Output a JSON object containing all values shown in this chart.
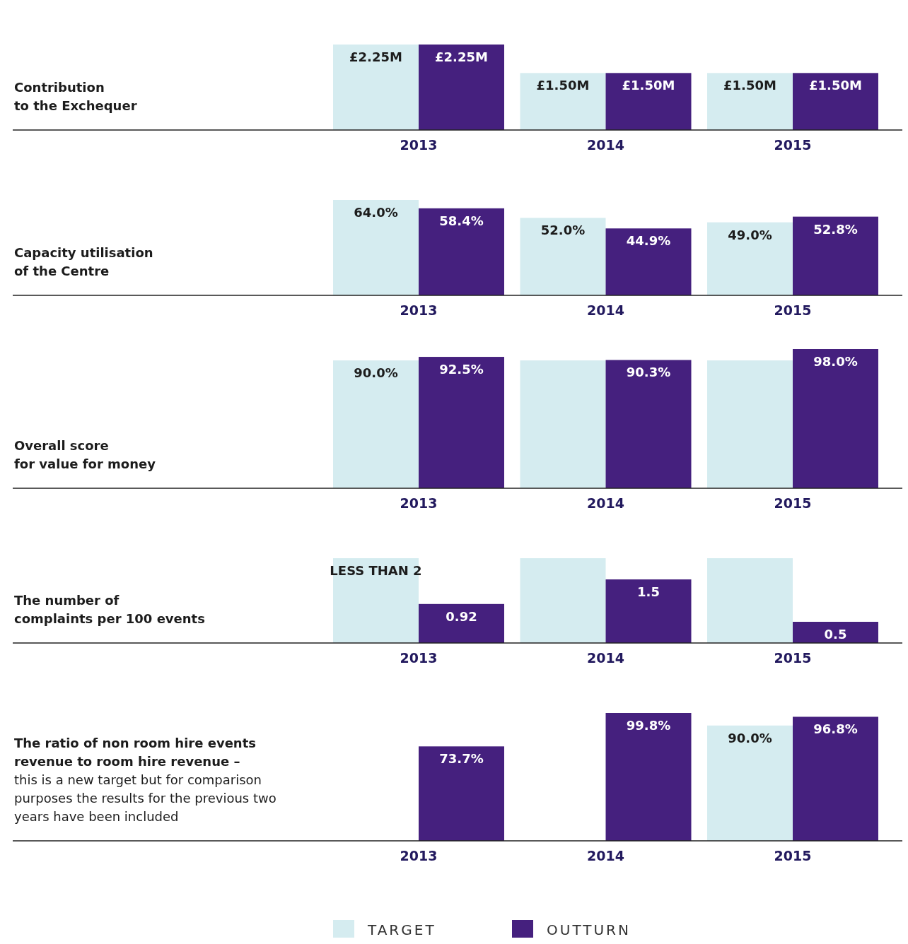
{
  "chart_data": [
    {
      "type": "bar",
      "ylabel": "Contribution\nto the Exchequer",
      "categories": [
        "2013",
        "2014",
        "2015"
      ],
      "series": [
        {
          "color": "#d5ecf0",
          "values": [
            2.25,
            1.5,
            1.5
          ],
          "value_labels": [
            "£2.25M",
            "£1.50M",
            "£1.50M"
          ]
        },
        {
          "color": "#45207e",
          "values": [
            2.25,
            1.5,
            1.5
          ],
          "value_labels": [
            "£2.25M",
            "£1.50M",
            "£1.50M"
          ]
        }
      ]
    },
    {
      "type": "bar",
      "ylabel": "Capacity utilisation\nof the Centre",
      "categories": [
        "2013",
        "2014",
        "2015"
      ],
      "series": [
        {
          "color": "#d5ecf0",
          "values": [
            64.0,
            52.0,
            49.0
          ],
          "value_labels": [
            "64.0%",
            "52.0%",
            "49.0%"
          ]
        },
        {
          "color": "#45207e",
          "values": [
            58.4,
            44.9,
            52.8
          ],
          "value_labels": [
            "58.4%",
            "44.9%",
            "52.8%"
          ]
        }
      ]
    },
    {
      "type": "bar",
      "ylabel": "Overall score\nfor value for money",
      "categories": [
        "2013",
        "2014",
        "2015"
      ],
      "series": [
        {
          "color": "#d5ecf0",
          "values": [
            90.0,
            90.0,
            90.0
          ],
          "value_labels": [
            "90.0%",
            null,
            null
          ]
        },
        {
          "color": "#45207e",
          "values": [
            92.5,
            90.3,
            98.0
          ],
          "value_labels": [
            "92.5%",
            "90.3%",
            "98.0%"
          ]
        }
      ]
    },
    {
      "type": "bar",
      "ylabel": "The number of\ncomplaints per 100 events",
      "categories": [
        "2013",
        "2014",
        "2015"
      ],
      "series": [
        {
          "color": "#d5ecf0",
          "values": [
            2,
            2,
            2
          ],
          "value_labels": [
            "LESS THAN 2",
            null,
            null
          ]
        },
        {
          "color": "#45207e",
          "values": [
            0.92,
            1.5,
            0.5
          ],
          "value_labels": [
            "0.92",
            "1.5",
            "0.5"
          ]
        }
      ]
    },
    {
      "type": "bar",
      "title": "The ratio of non room hire events\nrevenue to room hire revenue –",
      "subtitle": "this is a new target but for comparison\npurposes the results for the previous two\nyears have been included",
      "categories": [
        "2013",
        "2014",
        "2015"
      ],
      "legend": "bottom",
      "series": [
        {
          "name": "TARGET",
          "color": "#d5ecf0",
          "values": [
            null,
            null,
            90.0
          ],
          "value_labels": [
            null,
            null,
            "90.0%"
          ]
        },
        {
          "name": "OUTTURN",
          "color": "#45207e",
          "values": [
            73.7,
            99.8,
            96.8
          ],
          "value_labels": [
            "73.7%",
            "99.8%",
            "96.8%"
          ]
        }
      ]
    }
  ]
}
